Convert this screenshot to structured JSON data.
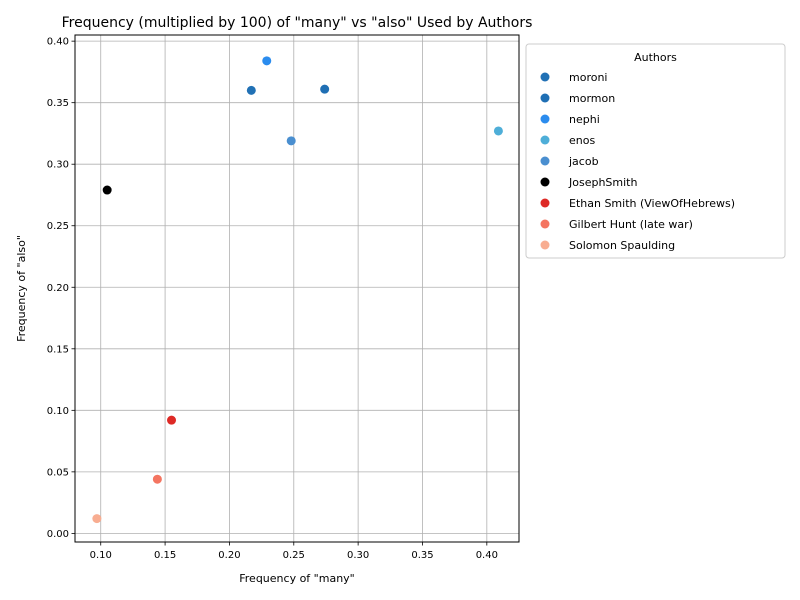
{
  "chart_data": {
    "type": "scatter",
    "title": "Frequency (multiplied by 100) of \"many\" vs \"also\" Used by Authors",
    "xlabel": "Frequency of \"many\"",
    "ylabel": "Frequency of \"also\"",
    "xlim": [
      0.08,
      0.425
    ],
    "ylim": [
      -0.007,
      0.405
    ],
    "xticks": [
      "0.10",
      "0.15",
      "0.20",
      "0.25",
      "0.30",
      "0.35",
      "0.40"
    ],
    "xtick_values": [
      0.1,
      0.15,
      0.2,
      0.25,
      0.3,
      0.35,
      0.4
    ],
    "yticks": [
      "0.00",
      "0.05",
      "0.10",
      "0.15",
      "0.20",
      "0.25",
      "0.30",
      "0.35",
      "0.40"
    ],
    "ytick_values": [
      0.0,
      0.05,
      0.1,
      0.15,
      0.2,
      0.25,
      0.3,
      0.35,
      0.4
    ],
    "grid": true,
    "legend_title": "Authors",
    "legend_position": "outside-right-top",
    "series": [
      {
        "name": "moroni",
        "color": "#2171b5",
        "points": [
          {
            "x": 0.217,
            "y": 0.36
          }
        ]
      },
      {
        "name": "mormon",
        "color": "#1f6fb4",
        "points": [
          {
            "x": 0.274,
            "y": 0.361
          }
        ]
      },
      {
        "name": "nephi",
        "color": "#2b8cee",
        "points": [
          {
            "x": 0.229,
            "y": 0.384
          }
        ]
      },
      {
        "name": "enos",
        "color": "#4eaed8",
        "points": [
          {
            "x": 0.409,
            "y": 0.327
          }
        ]
      },
      {
        "name": "jacob",
        "color": "#4a8fd0",
        "points": [
          {
            "x": 0.248,
            "y": 0.319
          }
        ]
      },
      {
        "name": "JosephSmith",
        "color": "#000000",
        "points": [
          {
            "x": 0.105,
            "y": 0.279
          }
        ]
      },
      {
        "name": "Ethan Smith (ViewOfHebrews)",
        "color": "#de2a26",
        "points": [
          {
            "x": 0.155,
            "y": 0.092
          }
        ]
      },
      {
        "name": "Gilbert Hunt (late war)",
        "color": "#f47561",
        "points": [
          {
            "x": 0.144,
            "y": 0.044
          }
        ]
      },
      {
        "name": "Solomon Spaulding",
        "color": "#f8ad91",
        "points": [
          {
            "x": 0.097,
            "y": 0.012
          }
        ]
      }
    ]
  }
}
